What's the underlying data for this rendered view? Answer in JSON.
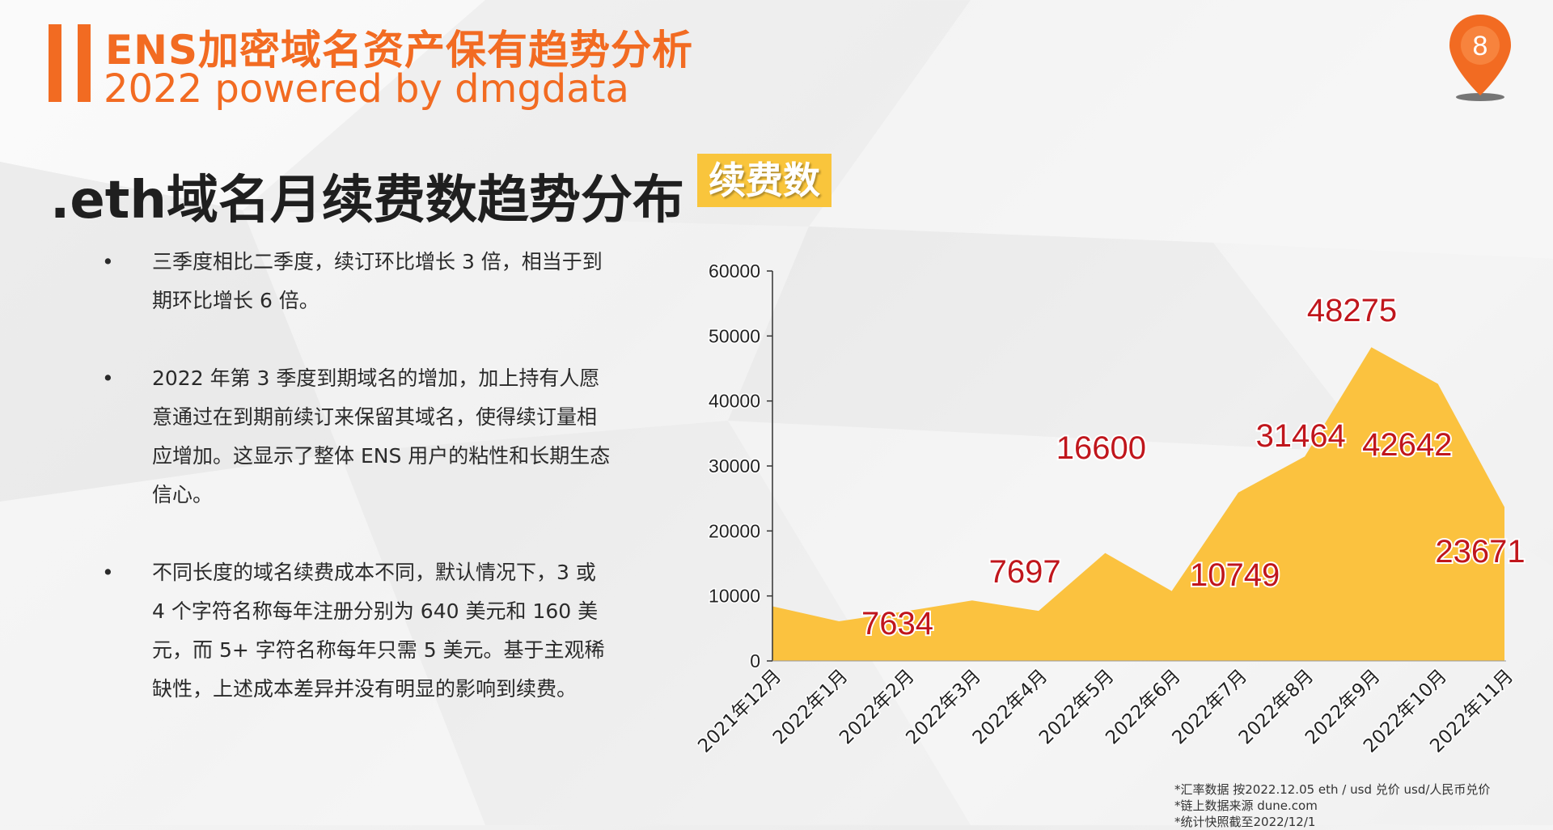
{
  "header": {
    "title": "ENS加密域名资产保有趋势分析",
    "subtitle": "2022 powered by dmgdata",
    "page_number": "8"
  },
  "section": {
    "title": ".eth域名月续费数趋势分布",
    "tag": "续费数"
  },
  "bullets": [
    {
      "symbol": "•",
      "text": "三季度相比二季度，续订环比增长 3 倍，相当于到期环比增长 6 倍。"
    },
    {
      "symbol": "•",
      "text": "2022 年第 3 季度到期域名的增加，加上持有人愿意通过在到期前续订来保留其域名，使得续订量相应增加。这显示了整体 ENS 用户的粘性和长期生态信心。"
    },
    {
      "symbol": "•",
      "text": "不同长度的域名续费成本不同，默认情况下，3 或 4 个字符名称每年注册分别为 640 美元和 160 美元，而 5+ 字符名称每年只需 5 美元。基于主观稀缺性，上述成本差异并没有明显的影响到续费。"
    }
  ],
  "chart_data": {
    "type": "area",
    "categories": [
      "2021年12月",
      "2022年1月",
      "2022年2月",
      "2022年3月",
      "2022年4月",
      "2022年5月",
      "2022年6月",
      "2022年7月",
      "2022年8月",
      "2022年9月",
      "2022年10月",
      "2022年11月"
    ],
    "values": [
      8400,
      6100,
      7634,
      9300,
      7697,
      16600,
      10749,
      25900,
      31464,
      48275,
      42642,
      23671
    ],
    "data_labels": [
      {
        "index": 2,
        "text": "7634"
      },
      {
        "index": 4,
        "text": "7697"
      },
      {
        "index": 5,
        "text": "16600"
      },
      {
        "index": 6,
        "text": "10749"
      },
      {
        "index": 8,
        "text": "31464"
      },
      {
        "index": 9,
        "text": "48275"
      },
      {
        "index": 10,
        "text": "42642"
      },
      {
        "index": 11,
        "text": "23671"
      }
    ],
    "yticks": [
      0,
      10000,
      20000,
      30000,
      40000,
      50000,
      60000
    ],
    "ylim": [
      0,
      60000
    ],
    "title": "",
    "xlabel": "",
    "ylabel": "",
    "fill_color": "#fbc23f",
    "label_color": "#c0161c"
  },
  "footnotes": [
    "*汇率数据 按2022.12.05 eth / usd 兑价 usd/人民币兑价",
    "*链上数据来源 dune.com",
    "*统计快照截至2022/12/1"
  ],
  "colors": {
    "accent": "#f26b22",
    "tag_bg": "#f9c53c"
  }
}
